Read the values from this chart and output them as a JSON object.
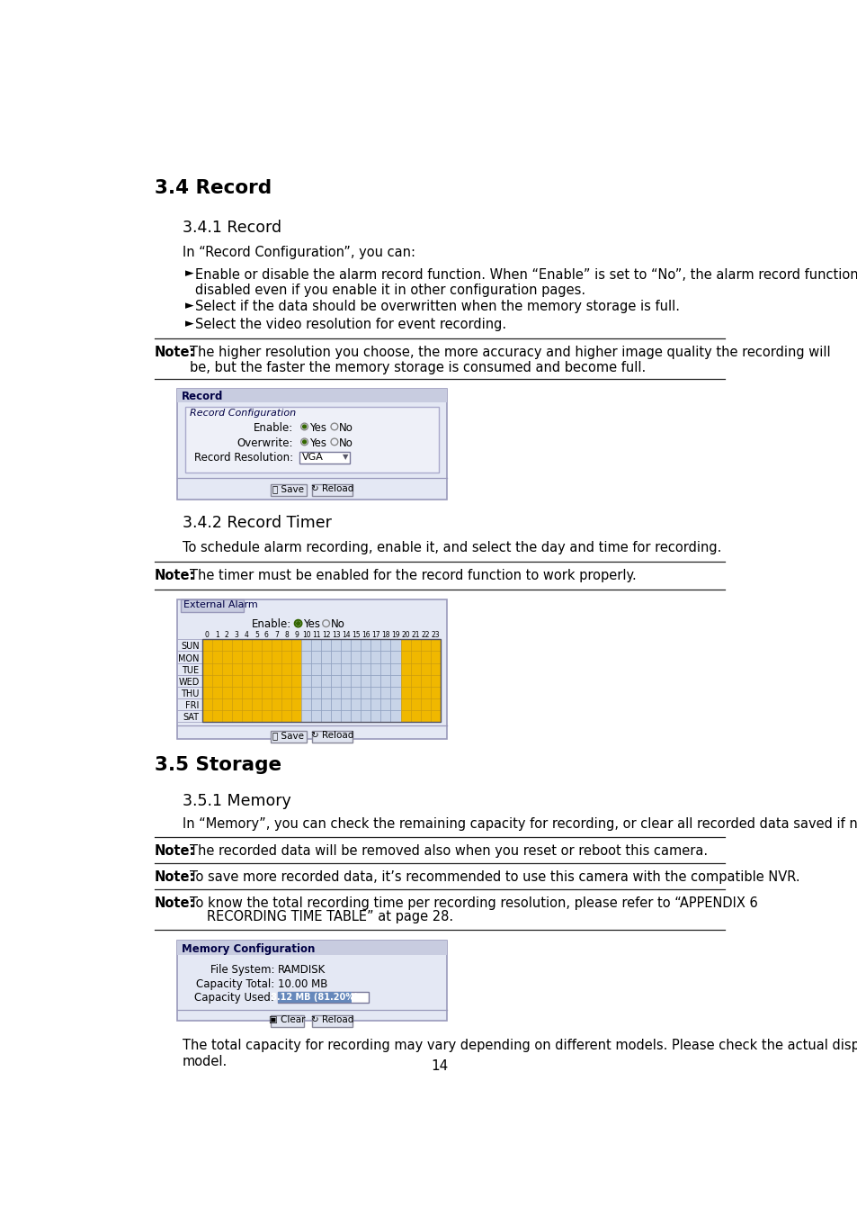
{
  "page_bg": "#ffffff",
  "section_34_title": "3.4 Record",
  "section_341_title": "3.4.1 Record",
  "section_341_intro": "In “Record Configuration”, you can:",
  "section_341_bullets": [
    "Enable or disable the alarm record function. When “Enable” is set to “No”, the alarm record function is\ndisabled even if you enable it in other configuration pages.",
    "Select if the data should be overwritten when the memory storage is full.",
    "Select the video resolution for event recording."
  ],
  "note1_label": "Note:",
  "note1_text": "The higher resolution you choose, the more accuracy and higher image quality the recording will\nbe, but the faster the memory storage is consumed and become full.",
  "section_342_title": "3.4.2 Record Timer",
  "section_342_intro": "To schedule alarm recording, enable it, and select the day and time for recording.",
  "note2_label": "Note:",
  "note2_text": "The timer must be enabled for the record function to work properly.",
  "section_35_title": "3.5 Storage",
  "section_351_title": "3.5.1 Memory",
  "section_351_intro": "In “Memory”, you can check the remaining capacity for recording, or clear all recorded data saved if needed.",
  "note3_label": "Note:",
  "note3_text": "The recorded data will be removed also when you reset or reboot this camera.",
  "note4_label": "Note:",
  "note4_text": "To save more recorded data, it’s recommended to use this camera with the compatible NVR.",
  "note5_label": "Note:",
  "note5_text_line1": "To know the total recording time per recording resolution, please refer to “APPENDIX 6",
  "note5_text_line2": "RECORDING TIME TABLE” at page 28.",
  "footer_line1": "The total capacity for recording may vary depending on different models. Please check the actual display of your",
  "footer_line2": "model.",
  "page_number": "14",
  "panel_bg": "#e4e8f4",
  "panel_header_bg": "#c8cce0",
  "panel_border": "#9999bb",
  "subpanel_bg": "#eef0f8",
  "subpanel_border": "#aaaacc",
  "days": [
    "SUN",
    "MON",
    "TUE",
    "WED",
    "THU",
    "FRI",
    "SAT"
  ],
  "hours": [
    "0",
    "1",
    "2",
    "3",
    "4",
    "5",
    "6",
    "7",
    "8",
    "9",
    "10",
    "11",
    "12",
    "13",
    "14",
    "15",
    "16",
    "17",
    "18",
    "19",
    "20",
    "21",
    "22",
    "23"
  ],
  "yellow_color": "#f0b800",
  "yellow_border": "#cc9900",
  "light_blue_cell": "#c8d4e8",
  "blue_border": "#8899bb",
  "grid_bg": "#d8dff0"
}
